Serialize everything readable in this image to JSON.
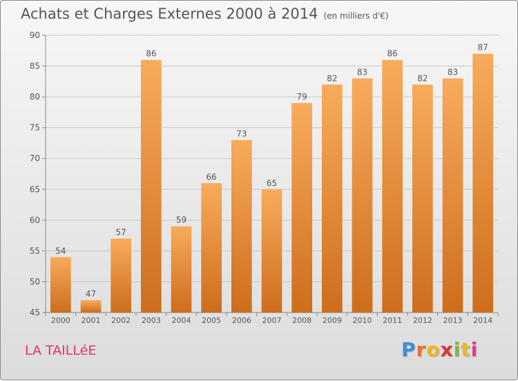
{
  "header": {
    "title": "Achats et Charges Externes 2000 à 2014",
    "unit": "(en milliers d'€)"
  },
  "commune": "LA TAILLéE",
  "brand": {
    "letters": [
      "P",
      "r",
      "o",
      "x",
      "i",
      "t",
      "i"
    ],
    "colors": [
      "#3a8fd6",
      "#e8742c",
      "#f3b51d",
      "#d8363c",
      "#7dbb3a",
      "#f3b51d",
      "#e63a8f"
    ]
  },
  "colors": {
    "bar_top": "#f8ab5c",
    "bar_bottom": "#cd6d1c",
    "text": "#555555",
    "commune": "#e4346a"
  },
  "chart_data": {
    "type": "bar",
    "categories": [
      "2000",
      "2001",
      "2002",
      "2003",
      "2004",
      "2005",
      "2006",
      "2007",
      "2008",
      "2009",
      "2010",
      "2011",
      "2012",
      "2013",
      "2014"
    ],
    "values": [
      54,
      47,
      57,
      86,
      59,
      66,
      73,
      65,
      79,
      82,
      83,
      86,
      82,
      83,
      87
    ],
    "ylim": [
      45,
      90
    ],
    "yticks": [
      45,
      50,
      55,
      60,
      65,
      70,
      75,
      80,
      85,
      90
    ],
    "grid": true,
    "data_labels": true
  }
}
